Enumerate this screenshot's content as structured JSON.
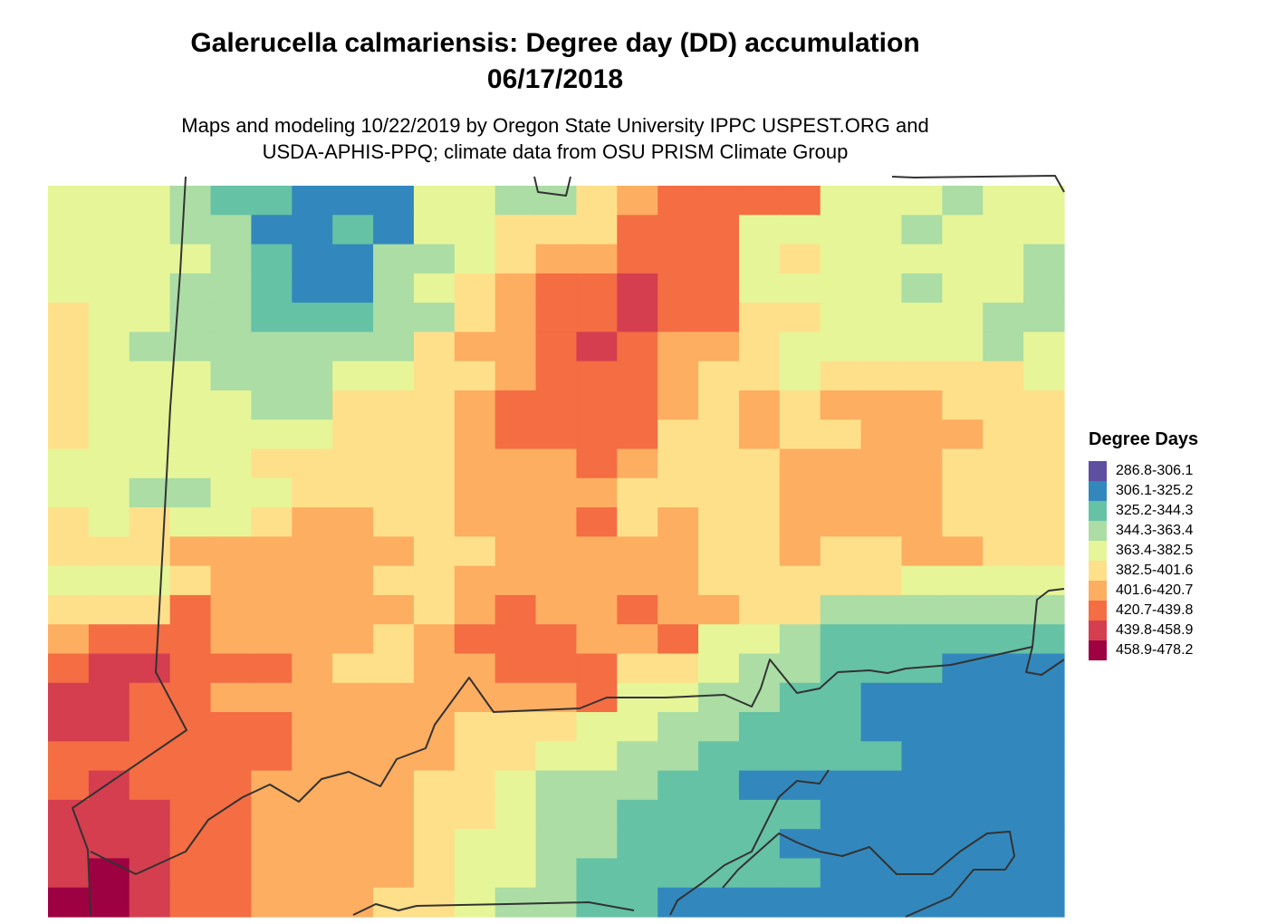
{
  "title_line1": "Galerucella calmariensis: Degree day (DD) accumulation",
  "title_line2": "06/17/2018",
  "subtitle_line1": "Maps and modeling 10/22/2019 by Oregon State University IPPC USPEST.ORG and",
  "subtitle_line2": "USDA-APHIS-PPQ; climate data from OSU PRISM Climate Group",
  "legend": {
    "title": "Degree Days",
    "classes": [
      {
        "label": "286.8-306.1",
        "color": "#5e4fa2"
      },
      {
        "label": "306.1-325.2",
        "color": "#3288bd"
      },
      {
        "label": "325.2-344.3",
        "color": "#66c2a5"
      },
      {
        "label": "344.3-363.4",
        "color": "#abdda4"
      },
      {
        "label": "363.4-382.5",
        "color": "#e6f598"
      },
      {
        "label": "382.5-401.6",
        "color": "#fee08b"
      },
      {
        "label": "401.6-420.7",
        "color": "#fdae61"
      },
      {
        "label": "420.7-439.8",
        "color": "#f46d43"
      },
      {
        "label": "439.8-458.9",
        "color": "#d53e4f"
      },
      {
        "label": "458.9-478.2",
        "color": "#9e0142"
      }
    ]
  },
  "map_grid": [
    "4443221114433567777444344",
    "4443311214455577744443444",
    "4444321133456677745444443",
    "4443321134567787744443443",
    "5443322233567787755444433",
    "5433333335667876654444434",
    "5444333445567776554555554",
    "5444433555677776565666555",
    "5444444555677775565566655",
    "4444455555666765556666555",
    "4433445555666655556666555",
    "5454456655666756556666555",
    "5556666665566666556556655",
    "4445666655666666555554444",
    "5557666665676676655333333",
    "6777666656777667443222222",
    "7887776556677755433222111",
    "8877666666666744332211111",
    "8877776666555443322211111",
    "7777776666554433222221111",
    "7877766665543332211111111",
    "8887766665543322222111111",
    "8887766665443322221111111",
    "8987766665443222222111111",
    "9987766655433221111111111"
  ]
}
